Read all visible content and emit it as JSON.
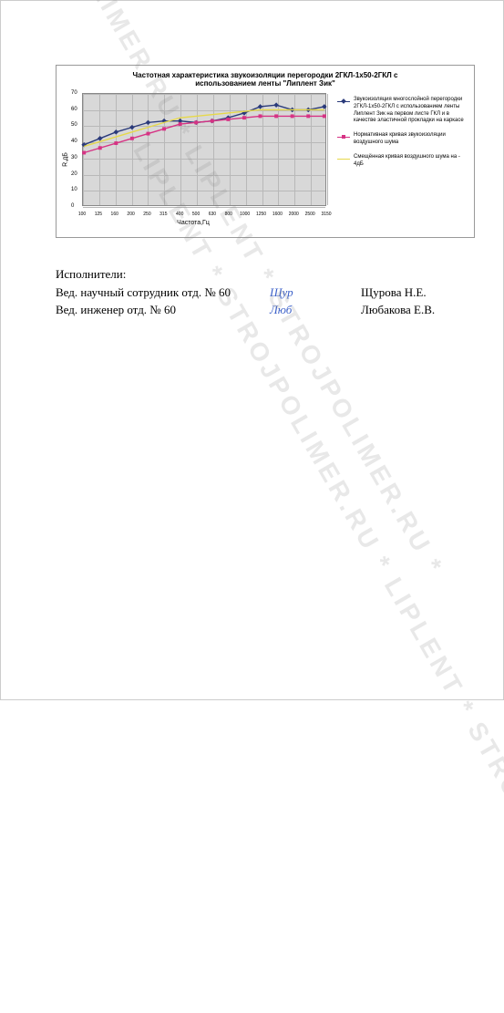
{
  "chart": {
    "type": "line",
    "title": "Частотная характеристика звукоизоляции перегородки 2ГКЛ-1х50-2ГКЛ с использованием ленты \"Липлент Зик\"",
    "ylabel": "R,дБ",
    "xlabel": "Частота,Гц",
    "ylim": [
      0,
      70
    ],
    "ytick_step": 10,
    "yticks": [
      0,
      10,
      20,
      30,
      40,
      50,
      60,
      70
    ],
    "categories": [
      "100",
      "125",
      "160",
      "200",
      "250",
      "315",
      "400",
      "500",
      "630",
      "800",
      "1000",
      "1250",
      "1600",
      "2000",
      "2500",
      "3150"
    ],
    "background_color": "#d8d8d8",
    "grid_color": "#b8b8b8",
    "series": [
      {
        "label": "Звукоизоляция многослойной перегородки 2ГКЛ-1х50-2ГКЛ с использованием ленты Липлент Зик на первом листе ГКЛ и в качестве эластичной прокладки на каркасе",
        "color": "#2a3a7a",
        "marker": "diamond",
        "values": [
          38,
          42,
          46,
          49,
          52,
          53,
          53,
          52,
          53,
          55,
          58,
          62,
          63,
          60,
          60,
          62
        ]
      },
      {
        "label": "Нормативная кривая звукоизоляции воздушного шума",
        "color": "#d63384",
        "marker": "square",
        "values": [
          33,
          36,
          39,
          42,
          45,
          48,
          51,
          52,
          53,
          54,
          55,
          56,
          56,
          56,
          56,
          56
        ]
      },
      {
        "label": "Смещённая кривая воздушного шума на - 4дБ",
        "color": "#e6d84a",
        "marker": "none",
        "values": [
          37,
          40,
          43,
          46,
          49,
          52,
          55,
          56,
          57,
          58,
          59,
          60,
          60,
          60,
          60,
          60
        ]
      }
    ]
  },
  "signatures": {
    "heading": "Исполнители:",
    "rows": [
      {
        "role": "Вед. научный сотрудник  отд. № 60",
        "sign": "Щур",
        "name": "Щурова Н.Е."
      },
      {
        "role": "Вед. инженер отд. № 60",
        "sign": "Люб",
        "name": "Любакова Е.В."
      }
    ]
  },
  "watermark": {
    "text": "LIPLENT * STROJPOLIMER.RU * LIPLENT * STROJPOLIMER.RU *",
    "color": "rgba(128,128,128,0.18)"
  }
}
